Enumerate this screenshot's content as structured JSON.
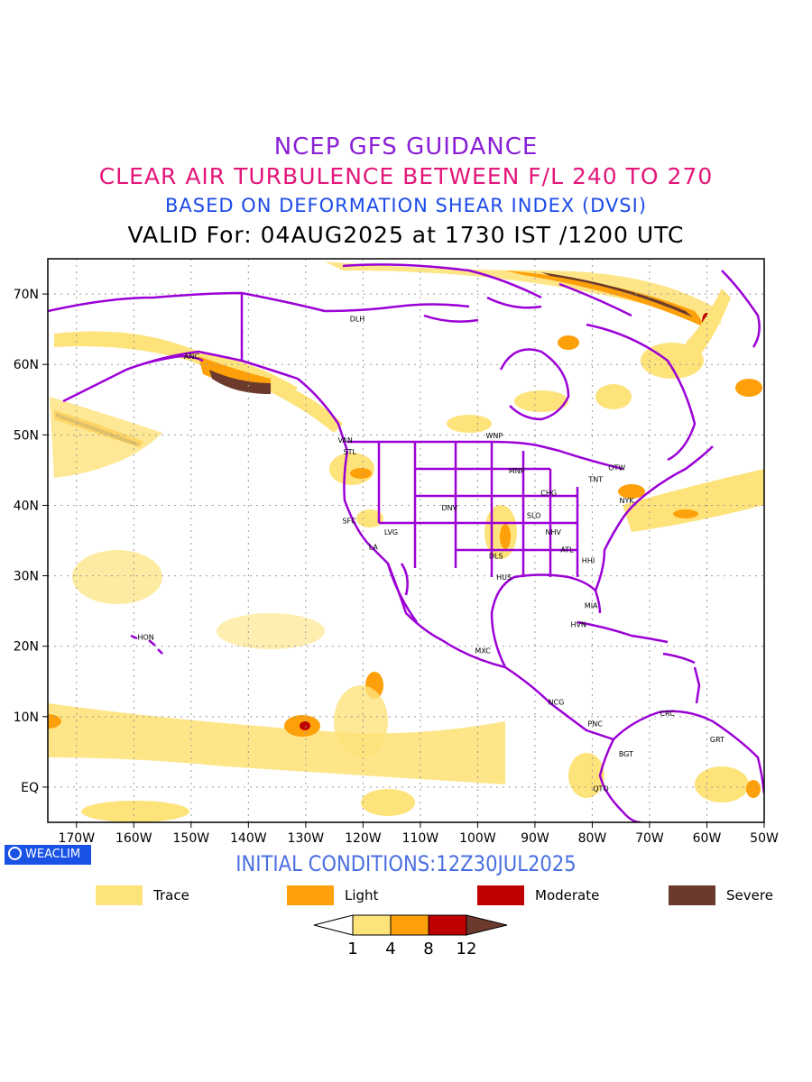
{
  "titles": {
    "line1": "NCEP GFS GUIDANCE",
    "line2": "CLEAR AIR TURBULENCE BETWEEN F/L 240 TO 270",
    "line3": "BASED ON DEFORMATION SHEAR INDEX (DVSI)",
    "line4": "VALID For: 04AUG2025 at 1730 IST /1200 UTC"
  },
  "axes": {
    "lon_labels": [
      "170W",
      "160W",
      "150W",
      "140W",
      "130W",
      "120W",
      "110W",
      "100W",
      "90W",
      "80W",
      "70W",
      "60W",
      "50W"
    ],
    "lat_labels": [
      "70N",
      "60N",
      "50N",
      "40N",
      "30N",
      "20N",
      "10N",
      "EQ"
    ],
    "lon_values": [
      -170,
      -160,
      -150,
      -140,
      -130,
      -120,
      -110,
      -100,
      -90,
      -80,
      -70,
      -60,
      -50
    ],
    "lat_values": [
      70,
      60,
      50,
      40,
      30,
      20,
      10,
      0
    ],
    "lon_range": [
      -175,
      -50
    ],
    "lat_range": [
      -5,
      75
    ]
  },
  "stations": [
    {
      "code": "ANC",
      "lon": -149.9,
      "lat": 61.2
    },
    {
      "code": "DLH",
      "lon": -121,
      "lat": 66.5
    },
    {
      "code": "VAN",
      "lon": -123.1,
      "lat": 49.3
    },
    {
      "code": "STL",
      "lon": -122.3,
      "lat": 47.6
    },
    {
      "code": "WNP",
      "lon": -97.1,
      "lat": 49.9
    },
    {
      "code": "MNP",
      "lon": -93.2,
      "lat": 44.9
    },
    {
      "code": "TNT",
      "lon": -79.4,
      "lat": 43.7
    },
    {
      "code": "OTW",
      "lon": -75.7,
      "lat": 45.4
    },
    {
      "code": "CHG",
      "lon": -87.6,
      "lat": 41.8
    },
    {
      "code": "NYK",
      "lon": -74,
      "lat": 40.7
    },
    {
      "code": "DNV",
      "lon": -104.9,
      "lat": 39.7
    },
    {
      "code": "SFC",
      "lon": -122.4,
      "lat": 37.8
    },
    {
      "code": "LVG",
      "lon": -115.1,
      "lat": 36.2
    },
    {
      "code": "SLO",
      "lon": -90.2,
      "lat": 38.6
    },
    {
      "code": "LA",
      "lon": -118.2,
      "lat": 34.1
    },
    {
      "code": "NHV",
      "lon": -86.8,
      "lat": 36.2
    },
    {
      "code": "ATL",
      "lon": -84.4,
      "lat": 33.7
    },
    {
      "code": "DLS",
      "lon": -96.8,
      "lat": 32.8
    },
    {
      "code": "HHI",
      "lon": -80.7,
      "lat": 32.2
    },
    {
      "code": "HUS",
      "lon": -95.4,
      "lat": 29.8
    },
    {
      "code": "MIA",
      "lon": -80.2,
      "lat": 25.8
    },
    {
      "code": "HVN",
      "lon": -82.4,
      "lat": 23.1
    },
    {
      "code": "HON",
      "lon": -157.9,
      "lat": 21.3
    },
    {
      "code": "MXC",
      "lon": -99.1,
      "lat": 19.4
    },
    {
      "code": "NCG",
      "lon": -86.3,
      "lat": 12.1
    },
    {
      "code": "PNC",
      "lon": -79.5,
      "lat": 9.0
    },
    {
      "code": "CRC",
      "lon": -66.9,
      "lat": 10.5
    },
    {
      "code": "GRT",
      "lon": -58.2,
      "lat": 6.8
    },
    {
      "code": "BGT",
      "lon": -74.1,
      "lat": 4.7
    },
    {
      "code": "QTO",
      "lon": -78.5,
      "lat": -0.2
    }
  ],
  "badge": "WEACLIM",
  "initial_conditions": "INITIAL CONDITIONS:12Z30JUL2025",
  "legend": [
    {
      "label": "Trace",
      "color": "#fee27a"
    },
    {
      "label": "Light",
      "color": "#fea00a"
    },
    {
      "label": "Moderate",
      "color": "#c00000"
    },
    {
      "label": "Severe",
      "color": "#6b3a2c"
    }
  ],
  "colorbar": {
    "ticks": [
      "1",
      "4",
      "8",
      "12"
    ],
    "colors": [
      "#ffffff",
      "#fee27a",
      "#fea00a",
      "#c00000",
      "#6b3a2c"
    ]
  }
}
